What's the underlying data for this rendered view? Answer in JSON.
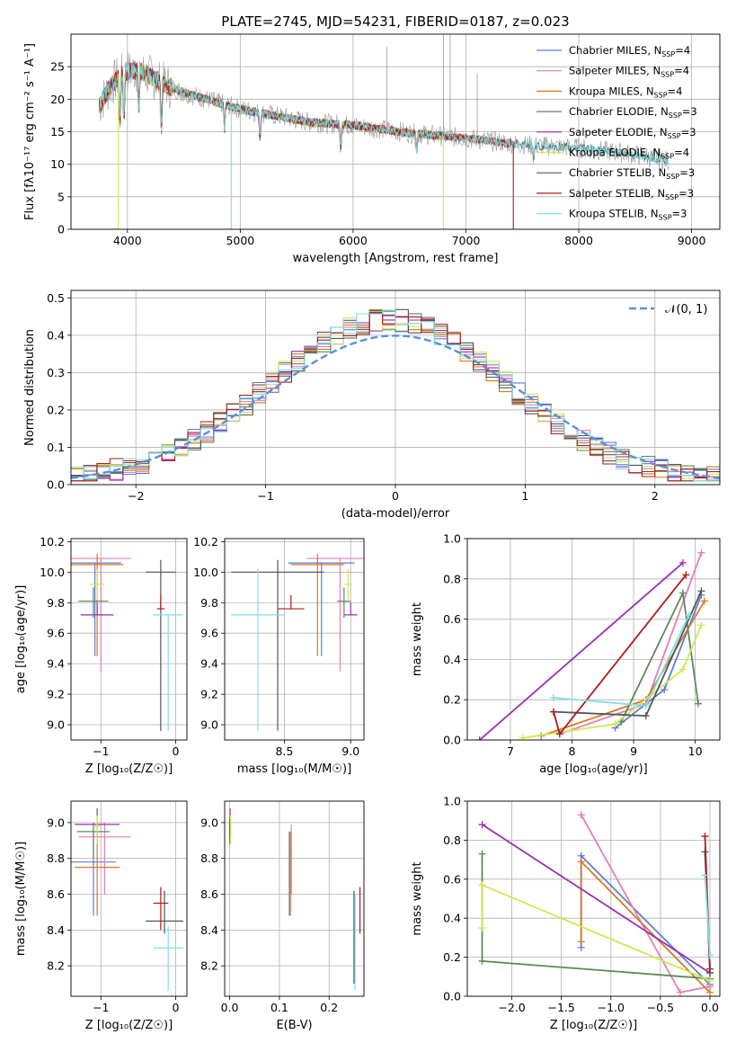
{
  "title": "PLATE=2745, MJD=54231, FIBERID=0187, z=0.023",
  "colors": {
    "c_miles": "#5b7fd6",
    "s_miles": "#e37fb6",
    "k_miles": "#d9781f",
    "c_elodie": "#5c8a5c",
    "s_elodie": "#9a2fb0",
    "k_elodie": "#cfe850",
    "c_stelib": "#555555",
    "s_stelib": "#b01a1a",
    "k_stelib": "#7fe0e0",
    "normal": "#5b8fdc"
  },
  "chart_data": [
    {
      "type": "line",
      "id": "spectrum",
      "xlabel": "wavelength [Angstrom, rest frame]",
      "ylabel": "Flux [fλ10⁻¹⁷ erg cm⁻² s⁻¹ A⁻¹]",
      "xlim": [
        3500,
        9250
      ],
      "ylim": [
        0,
        30
      ],
      "xticks": [
        4000,
        5000,
        6000,
        7000,
        8000,
        9000
      ],
      "yticks": [
        0,
        5,
        10,
        15,
        20,
        25
      ],
      "legend_position": "top-right",
      "legend": [
        {
          "label": "Chabrier MILES, N",
          "sub": "SSP",
          "suffix": "=4",
          "color": "c_miles"
        },
        {
          "label": "Salpeter MILES, N",
          "sub": "SSP",
          "suffix": "=4",
          "color": "s_miles"
        },
        {
          "label": "Kroupa MILES, N",
          "sub": "SSP",
          "suffix": "=4",
          "color": "k_miles"
        },
        {
          "label": "Chabrier ELODIE, N",
          "sub": "SSP",
          "suffix": "=3",
          "color": "c_elodie"
        },
        {
          "label": "Salpeter ELODIE, N",
          "sub": "SSP",
          "suffix": "=3",
          "color": "s_elodie"
        },
        {
          "label": "Kroupa ELODIE, N",
          "sub": "SSP",
          "suffix": "=4",
          "color": "k_elodie"
        },
        {
          "label": "Chabrier STELIB, N",
          "sub": "SSP",
          "suffix": "=3",
          "color": "c_stelib"
        },
        {
          "label": "Salpeter STELIB, N",
          "sub": "SSP",
          "suffix": "=3",
          "color": "s_stelib"
        },
        {
          "label": "Kroupa STELIB, N",
          "sub": "SSP",
          "suffix": "=3",
          "color": "k_stelib"
        }
      ],
      "continuum": [
        [
          3750,
          19
        ],
        [
          3850,
          22
        ],
        [
          3950,
          24
        ],
        [
          4100,
          24.5
        ],
        [
          4300,
          22.5
        ],
        [
          4500,
          21
        ],
        [
          4800,
          19.5
        ],
        [
          5000,
          18.5
        ],
        [
          5300,
          17.5
        ],
        [
          5600,
          16.5
        ],
        [
          6000,
          16
        ],
        [
          6500,
          14.8
        ],
        [
          7000,
          14
        ],
        [
          7500,
          13
        ],
        [
          8000,
          12.5
        ],
        [
          8500,
          11.5
        ],
        [
          8800,
          10.5
        ]
      ],
      "absorption": [
        [
          3934,
          7
        ],
        [
          3969,
          7
        ],
        [
          4101,
          6
        ],
        [
          4300,
          7
        ],
        [
          4861,
          4
        ],
        [
          5175,
          4
        ],
        [
          5890,
          3.5
        ],
        [
          6563,
          2.5
        ],
        [
          7600,
          2
        ]
      ],
      "model_drops": [
        {
          "color": "k_elodie",
          "x": 3920
        },
        {
          "color": "k_stelib",
          "x": 4920
        },
        {
          "color": "k_elodie",
          "x": 6800
        },
        {
          "color": "s_stelib",
          "x": 7420
        }
      ]
    },
    {
      "type": "line",
      "id": "residuals",
      "xlabel": "(data-model)/error",
      "ylabel": "Normed distribution",
      "xlim": [
        -2.5,
        2.5
      ],
      "ylim": [
        0,
        0.52
      ],
      "xticks": [
        -2,
        -1,
        0,
        1,
        2
      ],
      "yticks": [
        0.0,
        0.1,
        0.2,
        0.3,
        0.4,
        0.5
      ],
      "legend": [
        {
          "label": "𝒩(0, 1)",
          "color": "normal"
        }
      ],
      "bin_width": 0.1,
      "normal_mu": 0,
      "normal_sigma": 1
    },
    {
      "type": "scatter",
      "id": "age_vs_Z",
      "xlabel": "Z [log₁₀(Z/Z☉)]",
      "ylabel": "age [log₁₀(age/yr)]",
      "xlim": [
        -1.4,
        0.15
      ],
      "ylim": [
        8.9,
        10.22
      ],
      "xticks": [
        -1,
        0
      ],
      "yticks": [
        9.0,
        9.2,
        9.4,
        9.6,
        9.8,
        10.0,
        10.2
      ],
      "points": [
        {
          "color": "c_miles",
          "x": -1.08,
          "xerr": 0.35,
          "y": 10.06,
          "ylo": 9.45,
          "yhi": 10.06
        },
        {
          "color": "s_miles",
          "x": -1.0,
          "xerr": 0.4,
          "y": 10.09,
          "ylo": 9.35,
          "yhi": 10.09
        },
        {
          "color": "k_miles",
          "x": -1.05,
          "xerr": 0.35,
          "y": 10.05,
          "ylo": 9.45,
          "yhi": 10.12
        },
        {
          "color": "c_elodie",
          "x": -1.1,
          "xerr": 0.2,
          "y": 9.81,
          "ylo": 9.7,
          "yhi": 9.9
        },
        {
          "color": "s_elodie",
          "x": -1.05,
          "xerr": 0.22,
          "y": 9.72,
          "ylo": 9.72,
          "yhi": 9.8
        },
        {
          "color": "k_elodie",
          "x": -1.05,
          "xerr": 0.1,
          "y": 9.92,
          "ylo": 9.82,
          "yhi": 10.02
        },
        {
          "color": "c_stelib",
          "x": -0.2,
          "xerr": 0.2,
          "y": 10.0,
          "ylo": 8.96,
          "yhi": 10.08
        },
        {
          "color": "s_stelib",
          "x": -0.2,
          "xerr": 0.05,
          "y": 9.76,
          "ylo": 9.76,
          "yhi": 9.85
        },
        {
          "color": "k_stelib",
          "x": -0.1,
          "xerr": 0.2,
          "y": 9.72,
          "ylo": 8.96,
          "yhi": 9.72
        }
      ]
    },
    {
      "type": "scatter",
      "id": "age_vs_mass",
      "xlabel": "mass [log₁₀(M/M☉)]",
      "ylabel": "",
      "xlim": [
        8.05,
        9.1
      ],
      "ylim": [
        8.9,
        10.22
      ],
      "xticks": [
        8.5,
        9.0
      ],
      "yticks": [
        9.0,
        9.2,
        9.4,
        9.6,
        9.8,
        10.0,
        10.2
      ],
      "points": [
        {
          "color": "c_miles",
          "x": 8.78,
          "xerr": 0.25,
          "y": 10.06,
          "ylo": 9.45,
          "yhi": 10.06
        },
        {
          "color": "s_miles",
          "x": 8.92,
          "xerr": 0.25,
          "y": 10.09,
          "ylo": 9.35,
          "yhi": 10.09
        },
        {
          "color": "k_miles",
          "x": 8.75,
          "xerr": 0.2,
          "y": 10.05,
          "ylo": 9.45,
          "yhi": 10.12
        },
        {
          "color": "c_elodie",
          "x": 8.95,
          "xerr": 0.05,
          "y": 9.81,
          "ylo": 9.7,
          "yhi": 9.9
        },
        {
          "color": "s_elodie",
          "x": 9.0,
          "xerr": 0.05,
          "y": 9.72,
          "ylo": 9.72,
          "yhi": 9.8
        },
        {
          "color": "k_elodie",
          "x": 8.98,
          "xerr": 0.03,
          "y": 9.92,
          "ylo": 9.82,
          "yhi": 10.02
        },
        {
          "color": "c_stelib",
          "x": 8.45,
          "xerr": 0.35,
          "y": 10.0,
          "ylo": 8.96,
          "yhi": 10.08
        },
        {
          "color": "s_stelib",
          "x": 8.55,
          "xerr": 0.1,
          "y": 9.76,
          "ylo": 9.76,
          "yhi": 9.85
        },
        {
          "color": "k_stelib",
          "x": 8.3,
          "xerr": 0.2,
          "y": 9.72,
          "ylo": 8.96,
          "yhi": 10.02
        }
      ]
    },
    {
      "type": "line",
      "id": "weight_vs_age",
      "xlabel": "age [log₁₀(age/yr)]",
      "ylabel": "mass weight",
      "xlim": [
        6.3,
        10.4
      ],
      "ylim": [
        0,
        1.0
      ],
      "xticks": [
        7,
        8,
        9,
        10
      ],
      "yticks": [
        0.0,
        0.2,
        0.4,
        0.6,
        0.8,
        1.0
      ],
      "series": [
        {
          "color": "c_miles",
          "x": [
            8.7,
            9.5,
            10.1
          ],
          "y": [
            0.06,
            0.25,
            0.72
          ]
        },
        {
          "color": "s_miles",
          "x": [
            7.8,
            9.2,
            10.1
          ],
          "y": [
            0.03,
            0.18,
            0.93
          ]
        },
        {
          "color": "k_miles",
          "x": [
            7.5,
            9.2,
            10.15
          ],
          "y": [
            0.02,
            0.2,
            0.69
          ]
        },
        {
          "color": "c_elodie",
          "x": [
            8.8,
            9.8,
            10.05
          ],
          "y": [
            0.09,
            0.73,
            0.18
          ]
        },
        {
          "color": "s_elodie",
          "x": [
            6.5,
            9.8
          ],
          "y": [
            0.0,
            0.88
          ]
        },
        {
          "color": "k_elodie",
          "x": [
            7.2,
            8.7,
            9.8,
            10.1
          ],
          "y": [
            0.01,
            0.08,
            0.35,
            0.57
          ]
        },
        {
          "color": "c_stelib",
          "x": [
            7.7,
            9.2,
            10.1
          ],
          "y": [
            0.14,
            0.12,
            0.74
          ]
        },
        {
          "color": "s_stelib",
          "x": [
            7.7,
            7.8,
            9.85
          ],
          "y": [
            0.14,
            0.03,
            0.82
          ]
        },
        {
          "color": "k_stelib",
          "x": [
            7.7,
            9.2,
            9.9
          ],
          "y": [
            0.21,
            0.17,
            0.62
          ]
        }
      ]
    },
    {
      "type": "scatter",
      "id": "mass_vs_Z",
      "xlabel": "Z [log₁₀(Z/Z☉)]",
      "ylabel": "mass [log₁₀(M/M☉)]",
      "xlim": [
        -1.4,
        0.15
      ],
      "ylim": [
        8.03,
        9.12
      ],
      "xticks": [
        -1,
        0
      ],
      "yticks": [
        8.2,
        8.4,
        8.6,
        8.8,
        9.0
      ],
      "points": [
        {
          "color": "c_miles",
          "x": -1.1,
          "xerr": 0.3,
          "y": 8.78,
          "ylo": 8.48,
          "yhi": 8.95
        },
        {
          "color": "s_miles",
          "x": -0.95,
          "xerr": 0.35,
          "y": 8.92,
          "ylo": 8.6,
          "yhi": 9.0
        },
        {
          "color": "k_miles",
          "x": -1.05,
          "xerr": 0.3,
          "y": 8.75,
          "ylo": 8.48,
          "yhi": 8.95
        },
        {
          "color": "c_elodie",
          "x": -1.1,
          "xerr": 0.22,
          "y": 8.95,
          "ylo": 8.8,
          "yhi": 9.0
        },
        {
          "color": "s_elodie",
          "x": -1.05,
          "xerr": 0.3,
          "y": 8.99,
          "ylo": 8.92,
          "yhi": 9.08
        },
        {
          "color": "k_elodie",
          "x": -1.05,
          "xerr": 0.05,
          "y": 8.98,
          "ylo": 8.88,
          "yhi": 9.04
        },
        {
          "color": "c_stelib",
          "x": -0.15,
          "xerr": 0.25,
          "y": 8.45,
          "ylo": 8.38,
          "yhi": 8.62
        },
        {
          "color": "s_stelib",
          "x": -0.2,
          "xerr": 0.1,
          "y": 8.55,
          "ylo": 8.4,
          "yhi": 8.64
        },
        {
          "color": "k_stelib",
          "x": -0.1,
          "xerr": 0.2,
          "y": 8.3,
          "ylo": 8.06,
          "yhi": 8.42
        }
      ]
    },
    {
      "type": "scatter",
      "id": "mass_vs_ebv",
      "xlabel": "E(B-V)",
      "ylabel": "",
      "xlim": [
        -0.01,
        0.27
      ],
      "ylim": [
        8.03,
        9.12
      ],
      "xticks": [
        0.0,
        0.1,
        0.2
      ],
      "yticks": [
        8.2,
        8.4,
        8.6,
        8.8,
        9.0
      ],
      "points": [
        {
          "color": "c_miles",
          "x": 0.12,
          "ylo": 8.48,
          "yhi": 8.95
        },
        {
          "color": "s_miles",
          "x": 0.124,
          "ylo": 8.6,
          "yhi": 8.99
        },
        {
          "color": "k_miles",
          "x": 0.122,
          "ylo": 8.48,
          "yhi": 8.95
        },
        {
          "color": "c_elodie",
          "x": 0.0,
          "ylo": 8.88,
          "yhi": 9.02
        },
        {
          "color": "s_elodie",
          "x": 0.001,
          "ylo": 8.92,
          "yhi": 9.08
        },
        {
          "color": "k_elodie",
          "x": 0.002,
          "ylo": 8.88,
          "yhi": 9.04
        },
        {
          "color": "c_stelib",
          "x": 0.25,
          "ylo": 8.1,
          "yhi": 8.62
        },
        {
          "color": "s_stelib",
          "x": 0.262,
          "ylo": 8.38,
          "yhi": 8.64
        },
        {
          "color": "k_stelib",
          "x": 0.252,
          "ylo": 8.06,
          "yhi": 8.6
        }
      ]
    },
    {
      "type": "line",
      "id": "weight_vs_Z",
      "xlabel": "Z [log₁₀(Z/Z☉)]",
      "ylabel": "mass weight",
      "xlim": [
        -2.45,
        0.1
      ],
      "ylim": [
        0,
        1.0
      ],
      "xticks": [
        -2.0,
        -1.5,
        -1.0,
        -0.5,
        0.0
      ],
      "yticks": [
        0.0,
        0.2,
        0.4,
        0.6,
        0.8,
        1.0
      ],
      "series": [
        {
          "color": "c_miles",
          "x": [
            -1.3,
            -1.3,
            0.0
          ],
          "y": [
            0.25,
            0.72,
            0.06
          ]
        },
        {
          "color": "s_miles",
          "x": [
            -1.3,
            -0.3,
            0.0
          ],
          "y": [
            0.93,
            0.02,
            0.05
          ]
        },
        {
          "color": "k_miles",
          "x": [
            -1.3,
            -1.3,
            0.0
          ],
          "y": [
            0.28,
            0.69,
            0.02
          ]
        },
        {
          "color": "c_elodie",
          "x": [
            -2.3,
            -2.3,
            0.0
          ],
          "y": [
            0.73,
            0.18,
            0.09
          ]
        },
        {
          "color": "s_elodie",
          "x": [
            -2.3,
            0.0
          ],
          "y": [
            0.88,
            0.12
          ]
        },
        {
          "color": "k_elodie",
          "x": [
            -2.3,
            -2.3,
            -2.3,
            0.0
          ],
          "y": [
            0.57,
            0.35,
            0.57,
            0.08
          ]
        },
        {
          "color": "c_stelib",
          "x": [
            -0.05,
            0.0
          ],
          "y": [
            0.74,
            0.12
          ]
        },
        {
          "color": "s_stelib",
          "x": [
            -0.05,
            0.0
          ],
          "y": [
            0.82,
            0.14
          ]
        },
        {
          "color": "k_stelib",
          "x": [
            -0.05,
            0.0
          ],
          "y": [
            0.62,
            0.21
          ]
        }
      ]
    }
  ]
}
